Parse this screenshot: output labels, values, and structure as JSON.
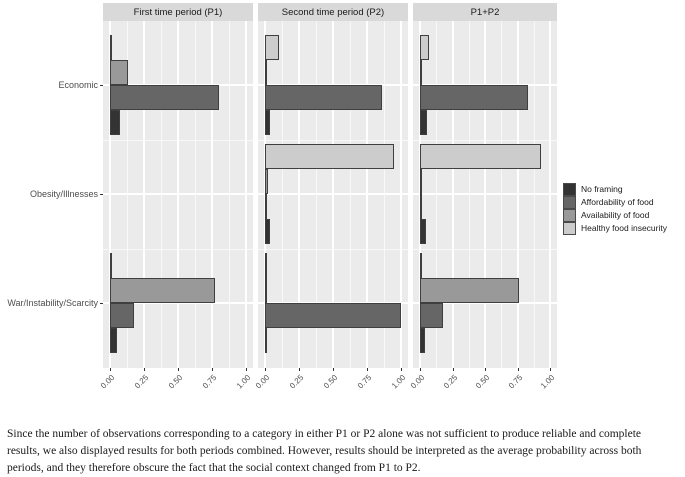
{
  "caption": "Since the number of observations corresponding to a category in either P1 or P2 alone was not sufficient to produce reliable and complete results, we also displayed results for both periods combined. However, results should be interpreted as the average probability across both periods, and they therefore obscure the fact that the social context changed from P1 to P2.",
  "chart_data": {
    "type": "bar",
    "orientation": "horizontal",
    "panel_background": "#EBEBEB",
    "strip_background": "#D9D9D9",
    "gridline_major_color": "#FFFFFF",
    "gridline_minor_color": "rgba(255,255,255,0.65)",
    "x_axis": {
      "range": [
        0,
        1
      ],
      "major_ticks": [
        0,
        0.25,
        0.5,
        0.75,
        1.0
      ],
      "minor_ticks": [
        0.125,
        0.375,
        0.625,
        0.875
      ],
      "tick_labels": [
        "0.00",
        "0.25",
        "0.50",
        "0.75",
        "1.00"
      ]
    },
    "categories": [
      "Economic",
      "Obesity/Illnesses",
      "War/Instability/Scarcity"
    ],
    "legend": {
      "position": "right",
      "entries": [
        {
          "label": "No framing",
          "color": "#333333"
        },
        {
          "label": "Affordability of food",
          "color": "#666666"
        },
        {
          "label": "Availability of food",
          "color": "#999999"
        },
        {
          "label": "Healthy food insecurity",
          "color": "#CCCCCC"
        }
      ]
    },
    "bar_order_top_to_bottom": [
      "Healthy food insecurity",
      "Availability of food",
      "Affordability of food",
      "No framing"
    ],
    "facets": [
      {
        "label": "First time period (P1)",
        "values": {
          "Economic": {
            "Healthy food insecurity": 0.005,
            "Availability of food": 0.13,
            "Affordability of food": 0.8,
            "No framing": 0.07
          },
          "Obesity/Illnesses": {
            "Healthy food insecurity": 0,
            "Availability of food": 0,
            "Affordability of food": 0,
            "No framing": 0
          },
          "War/Instability/Scarcity": {
            "Healthy food insecurity": 0.005,
            "Availability of food": 0.77,
            "Affordability of food": 0.18,
            "No framing": 0.05
          }
        }
      },
      {
        "label": "Second time period (P2)",
        "values": {
          "Economic": {
            "Healthy food insecurity": 0.1,
            "Availability of food": 0.005,
            "Affordability of food": 0.86,
            "No framing": 0.04
          },
          "Obesity/Illnesses": {
            "Healthy food insecurity": 0.95,
            "Availability of food": 0.02,
            "Affordability of food": 0.015,
            "No framing": 0.04
          },
          "War/Instability/Scarcity": {
            "Healthy food insecurity": 0.005,
            "Availability of food": 0.005,
            "Affordability of food": 1.0,
            "No framing": 0.005
          }
        }
      },
      {
        "label": "P1+P2",
        "values": {
          "Economic": {
            "Healthy food insecurity": 0.07,
            "Availability of food": 0.015,
            "Affordability of food": 0.83,
            "No framing": 0.05
          },
          "Obesity/Illnesses": {
            "Healthy food insecurity": 0.93,
            "Availability of food": 0.005,
            "Affordability of food": 0.015,
            "No framing": 0.045
          },
          "War/Instability/Scarcity": {
            "Healthy food insecurity": 0.005,
            "Availability of food": 0.76,
            "Affordability of food": 0.18,
            "No framing": 0.04
          }
        }
      }
    ]
  }
}
